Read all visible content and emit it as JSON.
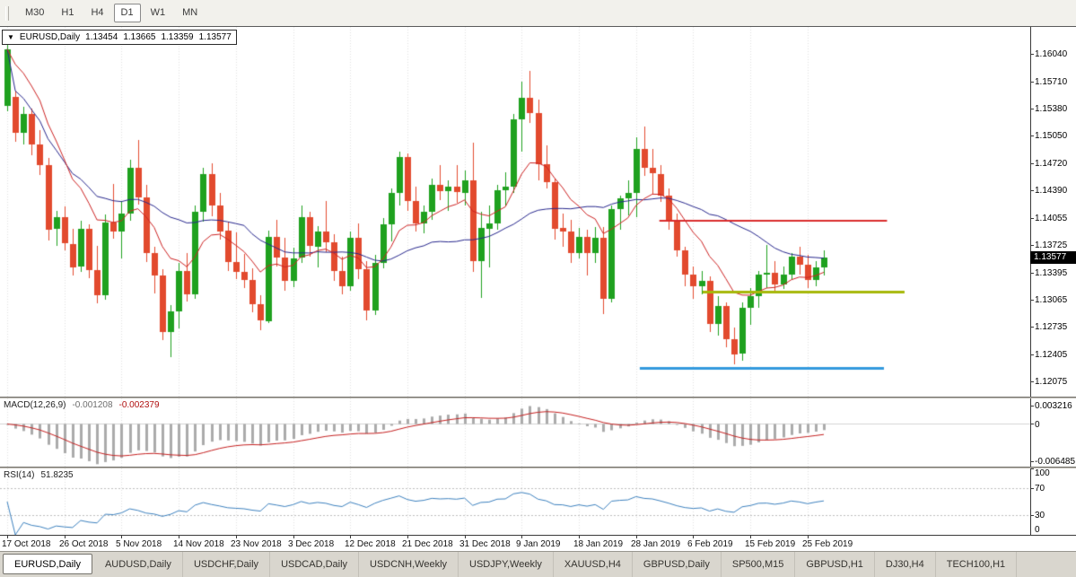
{
  "toolbar": {
    "timeframes": [
      {
        "label": "M30",
        "active": false
      },
      {
        "label": "H1",
        "active": false
      },
      {
        "label": "H4",
        "active": false
      },
      {
        "label": "D1",
        "active": true
      },
      {
        "label": "W1",
        "active": false
      },
      {
        "label": "MN",
        "active": false
      }
    ]
  },
  "ohlc_header": {
    "symbol": "EURUSD,Daily",
    "open": "1.13454",
    "high": "1.13665",
    "low": "1.13359",
    "close": "1.13577"
  },
  "tabbar": {
    "tabs": [
      {
        "label": "EURUSD,Daily",
        "active": true
      },
      {
        "label": "AUDUSD,Daily",
        "active": false
      },
      {
        "label": "USDCHF,Daily",
        "active": false
      },
      {
        "label": "USDCAD,Daily",
        "active": false
      },
      {
        "label": "USDCNH,Weekly",
        "active": false
      },
      {
        "label": "USDJPY,Weekly",
        "active": false
      },
      {
        "label": "XAUUSD,H4",
        "active": false
      },
      {
        "label": "GBPUSD,Daily",
        "active": false
      },
      {
        "label": "SP500,M15",
        "active": false
      },
      {
        "label": "GBPUSD,H1",
        "active": false
      },
      {
        "label": "DJ30,H4",
        "active": false
      },
      {
        "label": "TECH100,H1",
        "active": false
      }
    ]
  },
  "chart_data": {
    "type": "candlestick",
    "title": "EURUSD,Daily",
    "ylim": [
      1.1189,
      1.1637
    ],
    "current_price": 1.13577,
    "current_price_label": "1.13577",
    "axis_price_labels": [
      "1.16040",
      "1.15710",
      "1.15380",
      "1.15050",
      "1.14720",
      "1.14390",
      "1.14055",
      "1.13725",
      "1.13395",
      "1.13065",
      "1.12735",
      "1.12405",
      "1.12075"
    ],
    "x_tick_labels": [
      "17 Oct 2018",
      "26 Oct 2018",
      "5 Nov 2018",
      "14 Nov 2018",
      "23 Nov 2018",
      "3 Dec 2018",
      "12 Dec 2018",
      "21 Dec 2018",
      "31 Dec 2018",
      "9 Jan 2019",
      "18 Jan 2019",
      "28 Jan 2019",
      "6 Feb 2019",
      "15 Feb 2019",
      "25 Feb 2019"
    ],
    "x_tick_indices": [
      0,
      7,
      14,
      21,
      28,
      35,
      42,
      49,
      56,
      63,
      70,
      77,
      84,
      91,
      98
    ],
    "colors": {
      "up": "#1FA11F",
      "down": "#E24A2E",
      "grid": "#E0E0E0"
    },
    "ohlc": [
      [
        1.1542,
        1.1621,
        1.1535,
        1.161
      ],
      [
        1.1552,
        1.156,
        1.1498,
        1.1509
      ],
      [
        1.1509,
        1.154,
        1.1495,
        1.1532
      ],
      [
        1.1532,
        1.1538,
        1.1482,
        1.1495
      ],
      [
        1.1495,
        1.1512,
        1.1458,
        1.147
      ],
      [
        1.147,
        1.1478,
        1.1378,
        1.1392
      ],
      [
        1.1392,
        1.1414,
        1.1372,
        1.1406
      ],
      [
        1.1406,
        1.142,
        1.1366,
        1.1374
      ],
      [
        1.1374,
        1.1392,
        1.1336,
        1.1346
      ],
      [
        1.1346,
        1.1402,
        1.134,
        1.1392
      ],
      [
        1.1392,
        1.1398,
        1.1333,
        1.1342
      ],
      [
        1.1342,
        1.1372,
        1.1302,
        1.1312
      ],
      [
        1.1312,
        1.141,
        1.1306,
        1.14
      ],
      [
        1.14,
        1.1447,
        1.138,
        1.1389
      ],
      [
        1.1389,
        1.1426,
        1.1356,
        1.1411
      ],
      [
        1.1411,
        1.1476,
        1.1402,
        1.1466
      ],
      [
        1.1466,
        1.15,
        1.1422,
        1.143
      ],
      [
        1.143,
        1.1446,
        1.1352,
        1.1363
      ],
      [
        1.1363,
        1.1371,
        1.1314,
        1.1336
      ],
      [
        1.1336,
        1.1343,
        1.1258,
        1.1267
      ],
      [
        1.1267,
        1.13,
        1.1237,
        1.1292
      ],
      [
        1.1292,
        1.1351,
        1.1272,
        1.1341
      ],
      [
        1.1341,
        1.1363,
        1.1304,
        1.1313
      ],
      [
        1.1313,
        1.1421,
        1.1308,
        1.1413
      ],
      [
        1.1413,
        1.1466,
        1.1401,
        1.1459
      ],
      [
        1.1459,
        1.1472,
        1.1408,
        1.1421
      ],
      [
        1.1421,
        1.1436,
        1.1379,
        1.139
      ],
      [
        1.139,
        1.1401,
        1.1341,
        1.1352
      ],
      [
        1.1352,
        1.1388,
        1.1331,
        1.134
      ],
      [
        1.134,
        1.1362,
        1.1321,
        1.133
      ],
      [
        1.133,
        1.1345,
        1.1291,
        1.1301
      ],
      [
        1.1301,
        1.1312,
        1.127,
        1.1281
      ],
      [
        1.1281,
        1.139,
        1.1278,
        1.1383
      ],
      [
        1.1383,
        1.1403,
        1.1347,
        1.1358
      ],
      [
        1.1358,
        1.1381,
        1.1317,
        1.133
      ],
      [
        1.133,
        1.1369,
        1.1322,
        1.1357
      ],
      [
        1.1357,
        1.1421,
        1.1351,
        1.1406
      ],
      [
        1.1406,
        1.1413,
        1.1359,
        1.1371
      ],
      [
        1.1371,
        1.1396,
        1.1346,
        1.1389
      ],
      [
        1.1389,
        1.1426,
        1.1364,
        1.1376
      ],
      [
        1.1376,
        1.1386,
        1.1329,
        1.1341
      ],
      [
        1.1341,
        1.1359,
        1.1313,
        1.1322
      ],
      [
        1.1322,
        1.1389,
        1.1317,
        1.1381
      ],
      [
        1.1381,
        1.1399,
        1.1331,
        1.1343
      ],
      [
        1.1343,
        1.1353,
        1.1281,
        1.1293
      ],
      [
        1.1293,
        1.1361,
        1.1288,
        1.1351
      ],
      [
        1.1351,
        1.1405,
        1.1344,
        1.1398
      ],
      [
        1.1398,
        1.1441,
        1.1377,
        1.1436
      ],
      [
        1.1436,
        1.1486,
        1.1421,
        1.1479
      ],
      [
        1.1479,
        1.1484,
        1.1414,
        1.1426
      ],
      [
        1.1426,
        1.1443,
        1.1389,
        1.1399
      ],
      [
        1.1399,
        1.1421,
        1.1387,
        1.1413
      ],
      [
        1.1413,
        1.1453,
        1.1403,
        1.1446
      ],
      [
        1.1446,
        1.147,
        1.1427,
        1.1438
      ],
      [
        1.1438,
        1.1451,
        1.1414,
        1.1443
      ],
      [
        1.1443,
        1.1469,
        1.1424,
        1.1436
      ],
      [
        1.1436,
        1.1463,
        1.1421,
        1.1451
      ],
      [
        1.1451,
        1.1497,
        1.134,
        1.1353
      ],
      [
        1.1353,
        1.1413,
        1.1309,
        1.1393
      ],
      [
        1.1393,
        1.1421,
        1.1346,
        1.1399
      ],
      [
        1.1399,
        1.1446,
        1.1391,
        1.1439
      ],
      [
        1.1439,
        1.1461,
        1.1421,
        1.1443
      ],
      [
        1.1443,
        1.1531,
        1.1436,
        1.1525
      ],
      [
        1.1525,
        1.1571,
        1.1486,
        1.1551
      ],
      [
        1.1551,
        1.1584,
        1.1521,
        1.1533
      ],
      [
        1.1533,
        1.1549,
        1.1451,
        1.1471
      ],
      [
        1.1471,
        1.1493,
        1.1441,
        1.1449
      ],
      [
        1.1449,
        1.1453,
        1.1379,
        1.1393
      ],
      [
        1.1393,
        1.1411,
        1.1371,
        1.1389
      ],
      [
        1.1389,
        1.1403,
        1.1351,
        1.1363
      ],
      [
        1.1363,
        1.1393,
        1.1357,
        1.1383
      ],
      [
        1.1383,
        1.1391,
        1.1336,
        1.1363
      ],
      [
        1.1363,
        1.1395,
        1.1351,
        1.1381
      ],
      [
        1.1381,
        1.1394,
        1.1289,
        1.1307
      ],
      [
        1.1307,
        1.1421,
        1.1303,
        1.1416
      ],
      [
        1.1416,
        1.1433,
        1.1391,
        1.1429
      ],
      [
        1.1429,
        1.1451,
        1.1409,
        1.1436
      ],
      [
        1.1436,
        1.1503,
        1.1406,
        1.1489
      ],
      [
        1.1489,
        1.1516,
        1.1456,
        1.1466
      ],
      [
        1.1466,
        1.1489,
        1.1435,
        1.1459
      ],
      [
        1.1459,
        1.1469,
        1.1425,
        1.1433
      ],
      [
        1.1433,
        1.1441,
        1.1391,
        1.1403
      ],
      [
        1.1403,
        1.1411,
        1.1359,
        1.1366
      ],
      [
        1.1366,
        1.1371,
        1.1323,
        1.1337
      ],
      [
        1.1337,
        1.1347,
        1.1307,
        1.1323
      ],
      [
        1.1323,
        1.1341,
        1.1313,
        1.1329
      ],
      [
        1.1329,
        1.1335,
        1.1267,
        1.1277
      ],
      [
        1.1277,
        1.1311,
        1.1263,
        1.1299
      ],
      [
        1.1299,
        1.1303,
        1.1249,
        1.1259
      ],
      [
        1.1259,
        1.1273,
        1.1228,
        1.1241
      ],
      [
        1.1241,
        1.1303,
        1.1233,
        1.1297
      ],
      [
        1.1297,
        1.1321,
        1.1276,
        1.1311
      ],
      [
        1.1311,
        1.1341,
        1.1297,
        1.1337
      ],
      [
        1.1337,
        1.1373,
        1.1321,
        1.1339
      ],
      [
        1.1339,
        1.1353,
        1.1317,
        1.1325
      ],
      [
        1.1325,
        1.1347,
        1.1319,
        1.1337
      ],
      [
        1.1337,
        1.1363,
        1.1331,
        1.1359
      ],
      [
        1.1359,
        1.1371,
        1.1337,
        1.1349
      ],
      [
        1.1349,
        1.1361,
        1.1321,
        1.1331
      ],
      [
        1.1331,
        1.1353,
        1.1323,
        1.1346
      ],
      [
        1.13454,
        1.13665,
        1.13359,
        1.13577
      ]
    ],
    "overlays": {
      "ma_fast": {
        "type": "ema",
        "period": 10,
        "color": "#CC2222"
      },
      "ma_slow": {
        "type": "sma",
        "period": 30,
        "color": "#26268C"
      },
      "hlines": [
        {
          "price": 1.1402,
          "x1_frac": 0.64,
          "x2_frac": 0.861,
          "color": "#D92B2B",
          "width": 2
        },
        {
          "price": 1.1316,
          "x1_frac": 0.682,
          "x2_frac": 0.878,
          "color": "#A6B80A",
          "width": 3
        },
        {
          "price": 1.1224,
          "x1_frac": 0.621,
          "x2_frac": 0.858,
          "color": "#3399DD",
          "width": 3
        }
      ]
    },
    "indicators": {
      "macd": {
        "label": "MACD(12,26,9)",
        "value_main": "-0.001208",
        "value_signal": "-0.002379",
        "fast": 12,
        "slow": 26,
        "signal": 9,
        "ylim": [
          -0.0075,
          0.0045
        ],
        "axis_labels": [
          "0.003216",
          "0",
          "-0.006485"
        ],
        "hist_color": "#ABABAB",
        "signal_color": "#C41E1E"
      },
      "rsi": {
        "label": "RSI(14)",
        "value": "51.8235",
        "period": 14,
        "ylim": [
          0,
          100
        ],
        "levels": [
          70,
          30
        ],
        "axis_labels": [
          "100",
          "70",
          "30",
          "0"
        ],
        "line_color": "#3C80BE"
      }
    }
  }
}
